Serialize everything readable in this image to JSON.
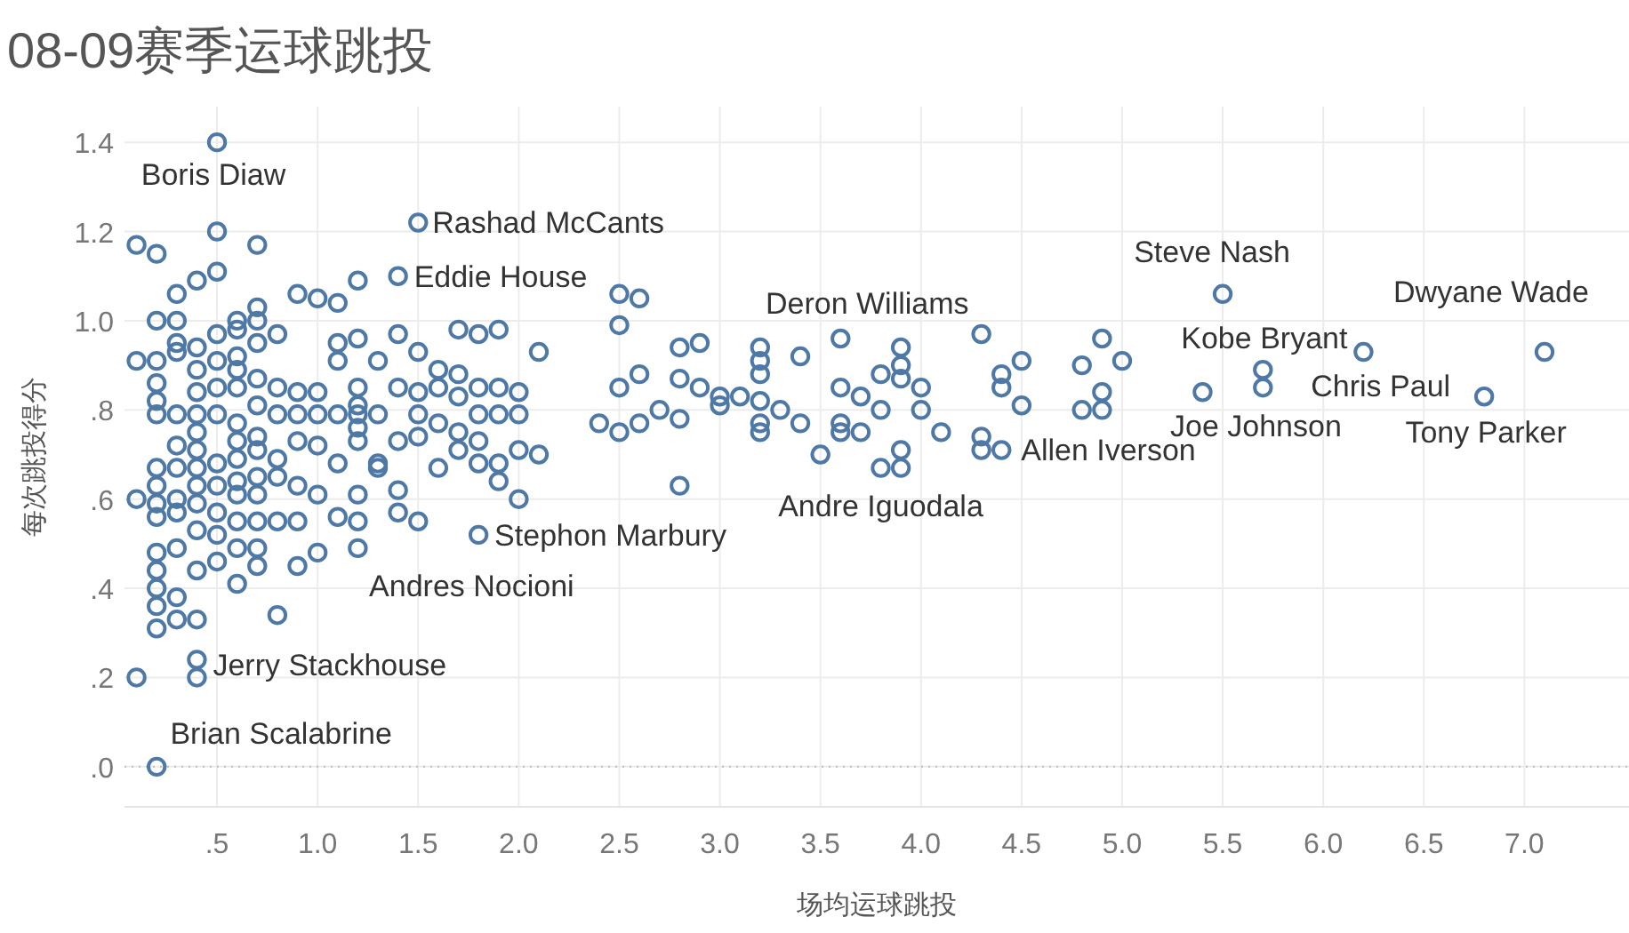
{
  "chart_data": {
    "type": "scatter",
    "title": "08-09赛季运球跳投",
    "xlabel": "场均运球跳投",
    "ylabel": "每次跳投得分",
    "xlim": [
      0.04,
      7.52
    ],
    "ylim": [
      -0.09,
      1.48
    ],
    "xticks": [
      {
        "value": 0.5,
        "label": ".5"
      },
      {
        "value": 1,
        "label": "1.0"
      },
      {
        "value": 1.5,
        "label": "1.5"
      },
      {
        "value": 2,
        "label": "2.0"
      },
      {
        "value": 2.5,
        "label": "2.5"
      },
      {
        "value": 3,
        "label": "3.0"
      },
      {
        "value": 3.5,
        "label": "3.5"
      },
      {
        "value": 4,
        "label": "4.0"
      },
      {
        "value": 4.5,
        "label": "4.5"
      },
      {
        "value": 5,
        "label": "5.0"
      },
      {
        "value": 5.5,
        "label": "5.5"
      },
      {
        "value": 6,
        "label": "6.0"
      },
      {
        "value": 6.5,
        "label": "6.5"
      },
      {
        "value": 7,
        "label": "7.0"
      }
    ],
    "yticks": [
      {
        "value": 0,
        "label": ".0"
      },
      {
        "value": 0.2,
        "label": ".2"
      },
      {
        "value": 0.4,
        "label": ".4"
      },
      {
        "value": 0.6,
        "label": ".6"
      },
      {
        "value": 0.8,
        "label": ".8"
      },
      {
        "value": 1,
        "label": "1.0"
      },
      {
        "value": 1.2,
        "label": "1.2"
      },
      {
        "value": 1.4,
        "label": "1.4"
      }
    ],
    "grid": true,
    "marker": "circle",
    "ref_lines": [
      {
        "axis": "y",
        "value": 0,
        "line_style": "dotted",
        "color": "#bbbbbb"
      }
    ],
    "series": [
      {
        "color": "#4e79a7",
        "x": [
          0.1,
          0.1,
          0.1,
          0.1,
          0.2,
          0.2,
          0.2,
          0.2,
          0.2,
          0.2,
          0.2,
          0.2,
          0.2,
          0.2,
          0.2,
          0.2,
          0.2,
          0.2,
          0.2,
          0.2,
          0.3,
          0.3,
          0.3,
          0.3,
          0.3,
          0.3,
          0.3,
          0.3,
          0.3,
          0.3,
          0.3,
          0.3,
          0.4,
          0.4,
          0.4,
          0.4,
          0.4,
          0.4,
          0.4,
          0.4,
          0.4,
          0.4,
          0.4,
          0.4,
          0.4,
          0.4,
          0.4,
          0.5,
          0.5,
          0.5,
          0.5,
          0.5,
          0.5,
          0.5,
          0.5,
          0.5,
          0.5,
          0.5,
          0.5,
          0.6,
          0.6,
          0.6,
          0.6,
          0.6,
          0.6,
          0.6,
          0.6,
          0.6,
          0.6,
          0.6,
          0.6,
          0.6,
          0.7,
          0.7,
          0.7,
          0.7,
          0.7,
          0.7,
          0.7,
          0.7,
          0.7,
          0.7,
          0.7,
          0.7,
          0.7,
          0.8,
          0.8,
          0.8,
          0.8,
          0.8,
          0.8,
          0.8,
          0.9,
          0.9,
          0.9,
          0.9,
          0.9,
          0.9,
          0.9,
          1.0,
          1.0,
          1.0,
          1.0,
          1.0,
          1.0,
          1.1,
          1.1,
          1.1,
          1.1,
          1.1,
          1.1,
          1.2,
          1.2,
          1.2,
          1.2,
          1.2,
          1.2,
          1.2,
          1.2,
          1.2,
          1.2,
          1.3,
          1.3,
          1.3,
          1.3,
          1.4,
          1.4,
          1.4,
          1.4,
          1.4,
          1.4,
          1.5,
          1.5,
          1.5,
          1.5,
          1.5,
          1.5,
          1.6,
          1.6,
          1.6,
          1.6,
          1.7,
          1.7,
          1.7,
          1.7,
          1.7,
          1.8,
          1.8,
          1.8,
          1.8,
          1.8,
          1.8,
          1.9,
          1.9,
          1.9,
          1.9,
          1.9,
          2.0,
          2.0,
          2.0,
          2.0,
          2.1,
          2.1,
          2.5,
          2.6,
          2.5,
          2.8,
          2.9,
          3.2,
          3.2,
          3.2,
          3.4,
          3.6,
          3.9,
          3.9,
          4.3,
          4.5,
          4.8,
          4.9,
          5.0,
          2.5,
          2.6,
          2.8,
          2.9,
          3.0,
          3.1,
          3.2,
          3.3,
          3.6,
          3.7,
          3.8,
          3.9,
          4.0,
          4.0,
          4.4,
          4.4,
          4.5,
          4.8,
          4.9,
          4.9,
          2.4,
          2.5,
          2.6,
          2.7,
          2.8,
          3.0,
          3.2,
          3.2,
          3.4,
          3.5,
          3.6,
          3.6,
          3.7,
          3.8,
          3.8,
          3.9,
          3.9,
          4.1,
          4.3,
          4.3,
          2.8,
          4.4,
          5.5,
          7.1,
          6.2,
          6.8,
          5.7,
          5.7,
          5.4
        ],
        "values": [
          1.17,
          0.91,
          0.6,
          0.2,
          1.15,
          1.0,
          0.91,
          0.86,
          0.82,
          0.79,
          0.67,
          0.63,
          0.59,
          0.56,
          0.48,
          0.44,
          0.4,
          0.36,
          0.31,
          0.0,
          1.06,
          1.0,
          0.95,
          0.93,
          0.79,
          0.72,
          0.67,
          0.6,
          0.57,
          0.49,
          0.38,
          0.33,
          1.09,
          0.94,
          0.89,
          0.84,
          0.79,
          0.75,
          0.71,
          0.67,
          0.63,
          0.59,
          0.53,
          0.44,
          0.33,
          0.24,
          0.2,
          1.4,
          1.2,
          1.11,
          0.97,
          0.91,
          0.85,
          0.79,
          0.68,
          0.63,
          0.57,
          0.52,
          0.46,
          1.0,
          0.98,
          0.92,
          0.89,
          0.85,
          0.77,
          0.73,
          0.69,
          0.64,
          0.61,
          0.55,
          0.49,
          0.41,
          1.17,
          1.03,
          1.0,
          0.95,
          0.87,
          0.81,
          0.74,
          0.71,
          0.65,
          0.61,
          0.55,
          0.49,
          0.45,
          0.97,
          0.85,
          0.79,
          0.69,
          0.65,
          0.55,
          0.34,
          1.06,
          0.84,
          0.79,
          0.73,
          0.63,
          0.55,
          0.45,
          1.05,
          0.84,
          0.79,
          0.72,
          0.61,
          0.48,
          1.04,
          0.95,
          0.91,
          0.79,
          0.68,
          0.56,
          1.09,
          0.96,
          0.85,
          0.81,
          0.79,
          0.76,
          0.73,
          0.61,
          0.55,
          0.49,
          0.91,
          0.79,
          0.68,
          0.67,
          1.1,
          0.97,
          0.85,
          0.73,
          0.62,
          0.57,
          1.22,
          0.93,
          0.84,
          0.79,
          0.74,
          0.55,
          0.89,
          0.85,
          0.77,
          0.67,
          0.98,
          0.88,
          0.83,
          0.75,
          0.71,
          0.97,
          0.85,
          0.79,
          0.73,
          0.68,
          0.52,
          0.98,
          0.85,
          0.79,
          0.68,
          0.64,
          0.84,
          0.79,
          0.71,
          0.6,
          0.93,
          0.7,
          1.06,
          1.05,
          0.99,
          0.94,
          0.95,
          0.94,
          0.91,
          0.88,
          0.92,
          0.96,
          0.94,
          0.9,
          0.97,
          0.91,
          0.9,
          0.96,
          0.91,
          0.85,
          0.88,
          0.87,
          0.85,
          0.83,
          0.83,
          0.82,
          0.8,
          0.85,
          0.83,
          0.88,
          0.87,
          0.85,
          0.8,
          0.88,
          0.85,
          0.81,
          0.8,
          0.84,
          0.8,
          0.77,
          0.75,
          0.77,
          0.8,
          0.78,
          0.81,
          0.77,
          0.75,
          0.77,
          0.7,
          0.77,
          0.75,
          0.75,
          0.8,
          0.67,
          0.71,
          0.67,
          0.75,
          0.74,
          0.71,
          0.63,
          0.71,
          1.06,
          0.93,
          0.93,
          0.83,
          0.89,
          0.85,
          0.84
        ]
      }
    ],
    "annotations": [
      {
        "text": "Boris Diaw",
        "x": 0.5,
        "y": 1.4
      },
      {
        "text": "Rashad McCants",
        "x": 1.5,
        "y": 1.22
      },
      {
        "text": "Eddie House",
        "x": 1.4,
        "y": 1.1
      },
      {
        "text": "Steve Nash",
        "x": 5.5,
        "y": 1.06
      },
      {
        "text": "Dwyane Wade",
        "x": 7.1,
        "y": 0.93
      },
      {
        "text": "Kobe Bryant",
        "x": 6.2,
        "y": 0.93
      },
      {
        "text": "Chris Paul",
        "x": 5.7,
        "y": 0.89
      },
      {
        "text": "Tony Parker",
        "x": 6.8,
        "y": 0.83
      },
      {
        "text": "Joe Johnson",
        "x": 5.4,
        "y": 0.84
      },
      {
        "text": "Deron Williams",
        "x": 3.6,
        "y": 0.96
      },
      {
        "text": "Allen Iverson",
        "x": 4.4,
        "y": 0.71
      },
      {
        "text": "Andre Iguodala",
        "x": 3.8,
        "y": 0.67
      },
      {
        "text": "Stephon Marbury",
        "x": 1.8,
        "y": 0.52
      },
      {
        "text": "Andres Nocioni",
        "x": 1.2,
        "y": 0.49
      },
      {
        "text": "Jerry Stackhouse",
        "x": 0.4,
        "y": 0.24
      },
      {
        "text": "Brian Scalabrine",
        "x": 0.2,
        "y": 0.0
      }
    ]
  }
}
